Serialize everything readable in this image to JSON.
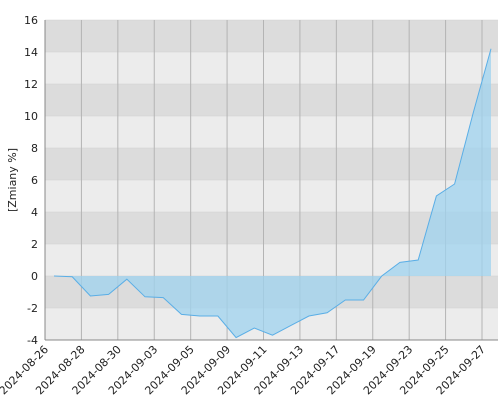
{
  "chart_data": {
    "type": "area",
    "y_label": "[Zmiany %]",
    "categories": [
      "2024-08-26",
      null,
      "2024-08-28",
      null,
      "2024-08-30",
      null,
      "2024-09-03",
      null,
      "2024-09-05",
      null,
      "2024-09-09",
      null,
      "2024-09-11",
      null,
      "2024-09-13",
      null,
      "2024-09-17",
      null,
      "2024-09-19",
      null,
      "2024-09-23",
      null,
      "2024-09-25",
      null,
      "2024-09-27"
    ],
    "values": [
      0.0,
      -0.05,
      -1.25,
      -1.15,
      -0.2,
      -1.3,
      -1.35,
      -2.4,
      -2.5,
      -2.5,
      -3.85,
      -3.25,
      -3.7,
      -3.1,
      -2.5,
      -2.3,
      -1.5,
      -1.5,
      0.0,
      0.85,
      1.0,
      5.0,
      5.75,
      10.1,
      14.2
    ],
    "color": "#5aaee6",
    "fill": "#9fd3ef",
    "ylim": [
      -4,
      16
    ],
    "yticks": [
      -4,
      -2,
      0,
      2,
      4,
      6,
      8,
      10,
      12,
      14,
      16
    ],
    "grid": true
  }
}
